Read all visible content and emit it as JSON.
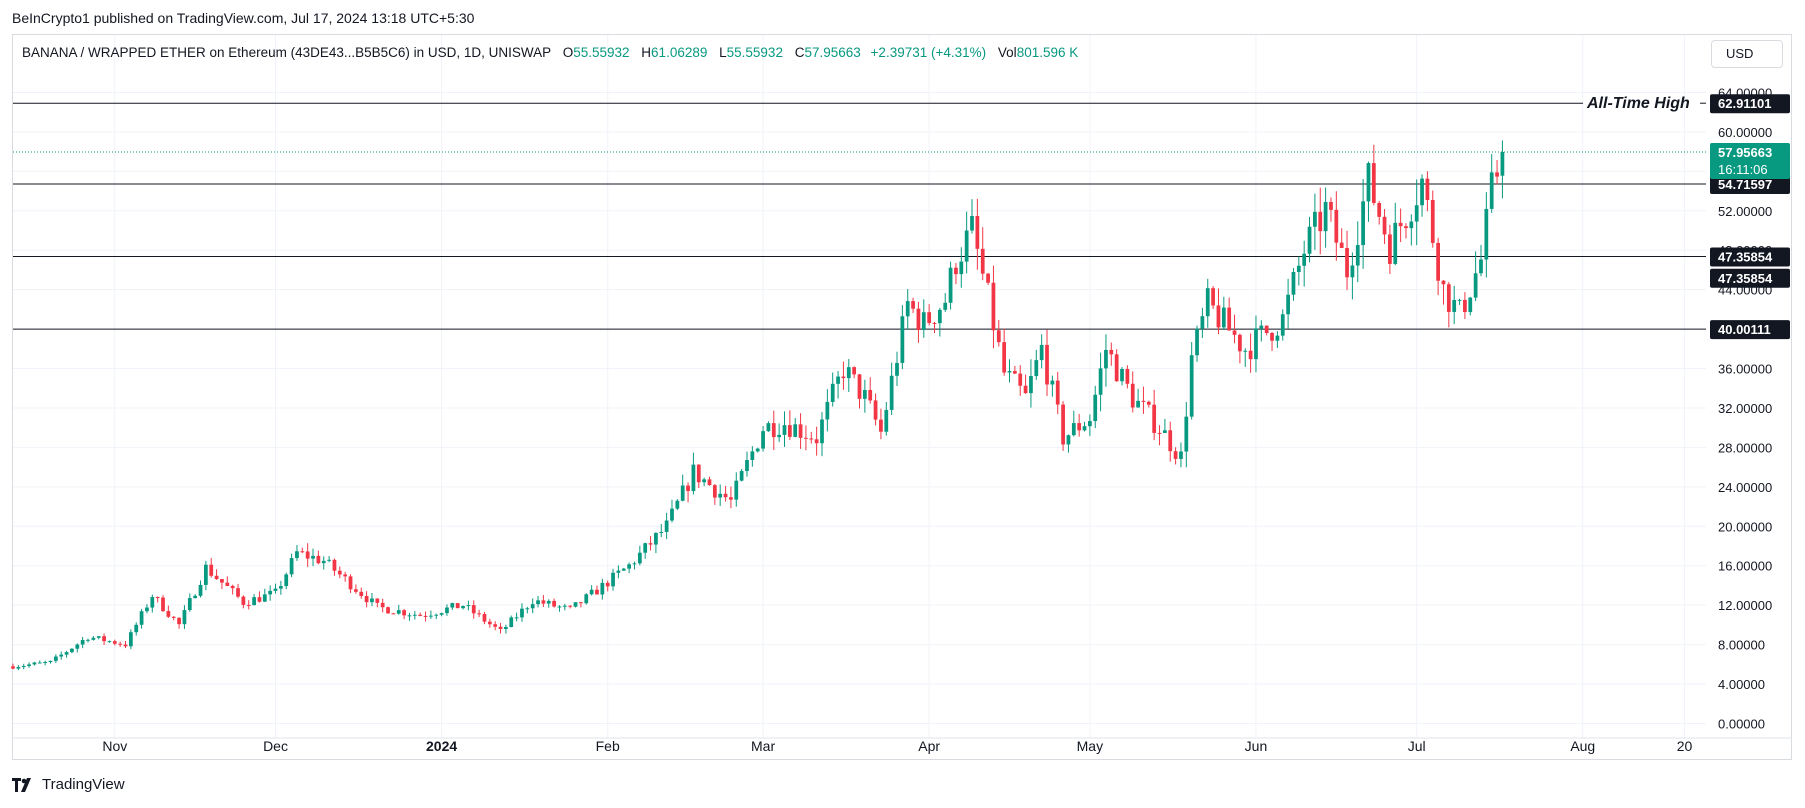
{
  "publisher": "BeInCrypto1 published on TradingView.com, Jul 17, 2024 13:18 UTC+5:30",
  "legend": {
    "symbol": "BANANA / WRAPPED ETHER on Ethereum (43DE43...B5B5C6) in USD, 1D, UNISWAP",
    "o_label": "O",
    "o_value": "55.55932",
    "h_label": "H",
    "h_value": "61.06289",
    "l_label": "L",
    "l_value": "55.55932",
    "c_label": "C",
    "c_value": "57.95663",
    "change": "+2.39731 (+4.31%)",
    "vol_label": "Vol",
    "vol_value": "801.596 K"
  },
  "currency_button": "USD",
  "footer": "TradingView",
  "colors": {
    "up": "#089981",
    "down": "#f23645",
    "grid": "#f0f3fa",
    "line": "#131722"
  },
  "chart_data": {
    "type": "candlestick",
    "ylim": [
      0,
      66
    ],
    "y_ticks": [
      {
        "value": 0,
        "label": "0.00000"
      },
      {
        "value": 4,
        "label": "4.00000"
      },
      {
        "value": 8,
        "label": "8.00000"
      },
      {
        "value": 12,
        "label": "12.00000"
      },
      {
        "value": 16,
        "label": "16.00000"
      },
      {
        "value": 20,
        "label": "20.00000"
      },
      {
        "value": 24,
        "label": "24.00000"
      },
      {
        "value": 28,
        "label": "28.00000"
      },
      {
        "value": 32,
        "label": "32.00000"
      },
      {
        "value": 36,
        "label": "36.00000"
      },
      {
        "value": 40,
        "label": "40.00000"
      },
      {
        "value": 44,
        "label": "44.00000"
      },
      {
        "value": 48,
        "label": "48.00000"
      },
      {
        "value": 52,
        "label": "52.00000"
      },
      {
        "value": 56,
        "label": "56.00000"
      },
      {
        "value": 60,
        "label": "60.00000"
      },
      {
        "value": 64,
        "label": "64.00000"
      }
    ],
    "x_ticks": [
      {
        "date": "2023-11-01",
        "label": "Nov",
        "bold": false
      },
      {
        "date": "2023-12-01",
        "label": "Dec",
        "bold": false
      },
      {
        "date": "2024-01-01",
        "label": "2024",
        "bold": true
      },
      {
        "date": "2024-02-01",
        "label": "Feb",
        "bold": false
      },
      {
        "date": "2024-03-01",
        "label": "Mar",
        "bold": false
      },
      {
        "date": "2024-04-01",
        "label": "Apr",
        "bold": false
      },
      {
        "date": "2024-05-01",
        "label": "May",
        "bold": false
      },
      {
        "date": "2024-06-01",
        "label": "Jun",
        "bold": false
      },
      {
        "date": "2024-07-01",
        "label": "Jul",
        "bold": false
      },
      {
        "date": "2024-08-01",
        "label": "Aug",
        "bold": false
      },
      {
        "date": "2024-08-20",
        "label": "20",
        "bold": false
      }
    ],
    "x_range": [
      "2023-10-13",
      "2024-08-24"
    ],
    "levels": [
      {
        "value": 62.91101,
        "label": "62.91101",
        "annotation": "All-Time High"
      },
      {
        "value": 54.71597,
        "label": "54.71597",
        "annotation": ""
      },
      {
        "value": 47.35854,
        "label": "47.35854",
        "annotation": ""
      },
      {
        "value": 40.00111,
        "label": "40.00111",
        "annotation": ""
      }
    ],
    "extra_price_labels": [
      {
        "value": 45.0,
        "label": "47.35854"
      }
    ],
    "current_price": {
      "value": 57.95663,
      "label": "57.95663",
      "countdown": "16:11:06"
    },
    "anchors": [
      {
        "date": "2023-10-13",
        "close": 5.8
      },
      {
        "date": "2023-10-20",
        "close": 6.2
      },
      {
        "date": "2023-10-27",
        "close": 8.8
      },
      {
        "date": "2023-11-03",
        "close": 8.0
      },
      {
        "date": "2023-11-08",
        "close": 13.0
      },
      {
        "date": "2023-11-13",
        "close": 10.0
      },
      {
        "date": "2023-11-18",
        "close": 15.8
      },
      {
        "date": "2023-11-25",
        "close": 12.3
      },
      {
        "date": "2023-12-01",
        "close": 13.2
      },
      {
        "date": "2023-12-05",
        "close": 17.3
      },
      {
        "date": "2023-12-10",
        "close": 16.5
      },
      {
        "date": "2023-12-20",
        "close": 11.8
      },
      {
        "date": "2023-12-28",
        "close": 11.0
      },
      {
        "date": "2024-01-05",
        "close": 12.0
      },
      {
        "date": "2024-01-12",
        "close": 9.3
      },
      {
        "date": "2024-01-18",
        "close": 12.5
      },
      {
        "date": "2024-01-25",
        "close": 11.5
      },
      {
        "date": "2024-01-30",
        "close": 13.5
      },
      {
        "date": "2024-02-05",
        "close": 16.0
      },
      {
        "date": "2024-02-12",
        "close": 20.0
      },
      {
        "date": "2024-02-17",
        "close": 25.5
      },
      {
        "date": "2024-02-24",
        "close": 22.5
      },
      {
        "date": "2024-03-01",
        "close": 30.0
      },
      {
        "date": "2024-03-05",
        "close": 30.5
      },
      {
        "date": "2024-03-11",
        "close": 29.0
      },
      {
        "date": "2024-03-16",
        "close": 36.0
      },
      {
        "date": "2024-03-20",
        "close": 33.0
      },
      {
        "date": "2024-03-23",
        "close": 29.5
      },
      {
        "date": "2024-03-28",
        "close": 42.5
      },
      {
        "date": "2024-03-31",
        "close": 40.5
      },
      {
        "date": "2024-04-04",
        "close": 43.0
      },
      {
        "date": "2024-04-06",
        "close": 47.0
      },
      {
        "date": "2024-04-09",
        "close": 50.0
      },
      {
        "date": "2024-04-12",
        "close": 43.0
      },
      {
        "date": "2024-04-15",
        "close": 35.5
      },
      {
        "date": "2024-04-19",
        "close": 33.0
      },
      {
        "date": "2024-04-22",
        "close": 38.0
      },
      {
        "date": "2024-04-26",
        "close": 29.0
      },
      {
        "date": "2024-05-01",
        "close": 31.0
      },
      {
        "date": "2024-05-04",
        "close": 38.0
      },
      {
        "date": "2024-05-09",
        "close": 33.0
      },
      {
        "date": "2024-05-14",
        "close": 30.0
      },
      {
        "date": "2024-05-18",
        "close": 27.0
      },
      {
        "date": "2024-05-20",
        "close": 37.0
      },
      {
        "date": "2024-05-23",
        "close": 42.5
      },
      {
        "date": "2024-05-30",
        "close": 38.0
      },
      {
        "date": "2024-06-06",
        "close": 41.0
      },
      {
        "date": "2024-06-10",
        "close": 48.0
      },
      {
        "date": "2024-06-14",
        "close": 52.0
      },
      {
        "date": "2024-06-18",
        "close": 46.0
      },
      {
        "date": "2024-06-22",
        "close": 55.0
      },
      {
        "date": "2024-06-26",
        "close": 48.5
      },
      {
        "date": "2024-07-02",
        "close": 55.0
      },
      {
        "date": "2024-07-06",
        "close": 44.0
      },
      {
        "date": "2024-07-09",
        "close": 41.5
      },
      {
        "date": "2024-07-13",
        "close": 47.0
      },
      {
        "date": "2024-07-15",
        "close": 54.0
      },
      {
        "date": "2024-07-17",
        "close": 57.95663
      }
    ]
  }
}
